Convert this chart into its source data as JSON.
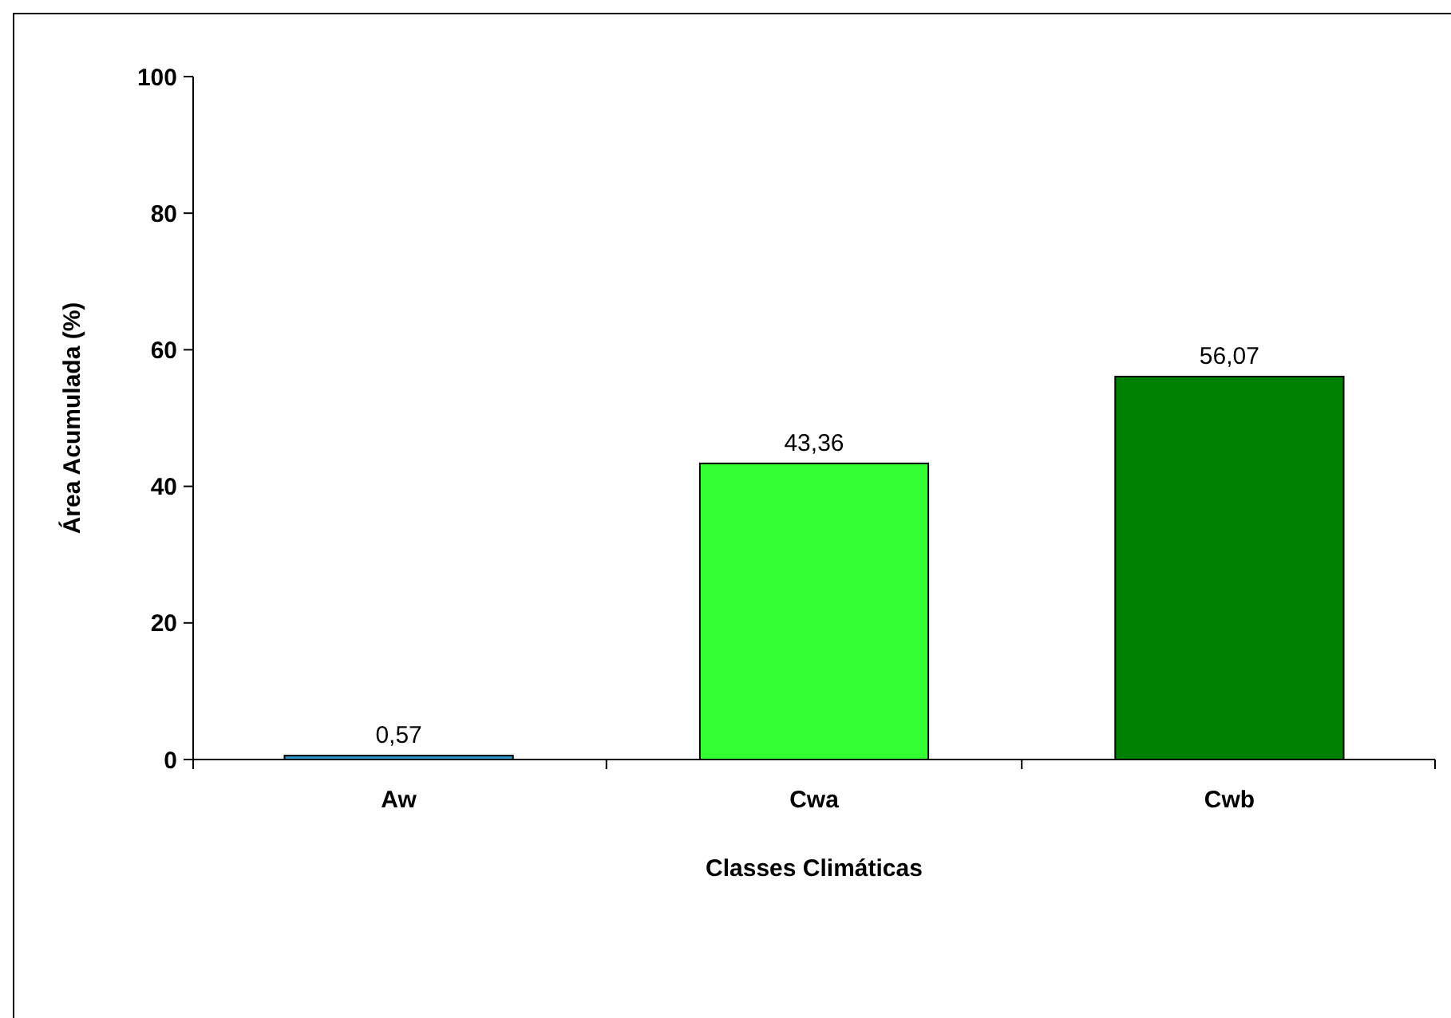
{
  "chart_data": {
    "type": "bar",
    "xlabel": "Classes Climáticas",
    "ylabel": "Área Acumulada (%)",
    "categories": [
      "Aw",
      "Cwa",
      "Cwb"
    ],
    "values": [
      0.57,
      43.36,
      56.07
    ],
    "value_labels": [
      "0,57",
      "43,36",
      "56,07"
    ],
    "colors": [
      "#3399cc",
      "#33ff33",
      "#008000"
    ],
    "ylim": [
      0,
      100
    ],
    "yticks": [
      0,
      20,
      40,
      60,
      80,
      100
    ],
    "grid": false
  }
}
